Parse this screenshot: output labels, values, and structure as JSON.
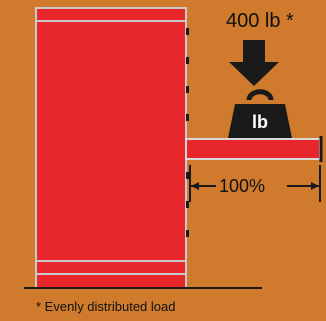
{
  "load_label": "400 lb *",
  "weight_symbol": "lb",
  "extension_label": "100%",
  "footnote": "* Evenly distributed load",
  "icons": [
    "down-arrow-icon",
    "weight-icon"
  ],
  "colors": {
    "background": "#cf7a2c",
    "upright": "#e8272c",
    "outline": "#1a1a1a",
    "weight": "#1a1a1a"
  }
}
